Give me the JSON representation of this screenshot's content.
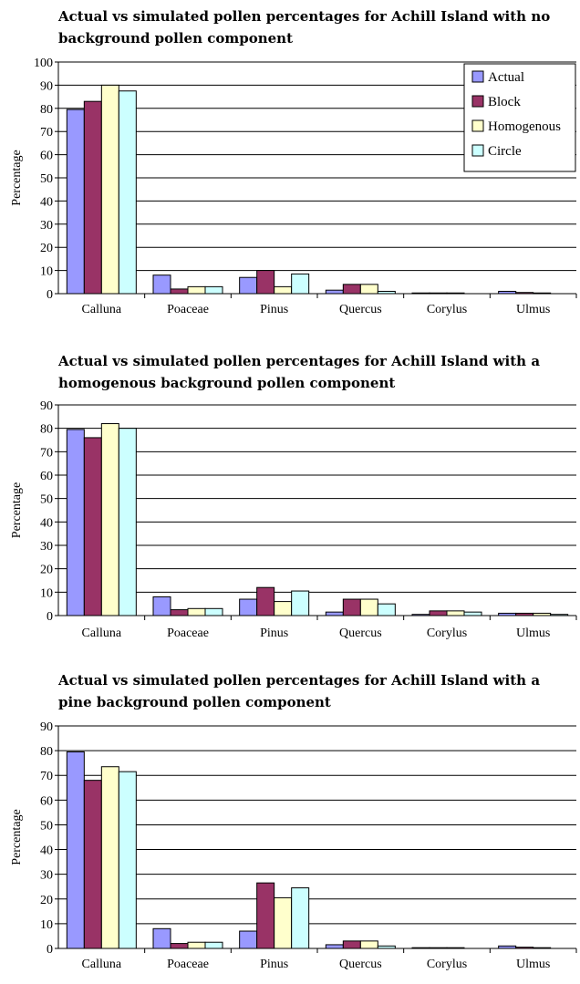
{
  "series_colors": [
    "#9999ff",
    "#993366",
    "#ffffcc",
    "#ccffff"
  ],
  "chart_data": [
    {
      "type": "bar",
      "title": "Actual vs simulated pollen percentages for Achill Island with no background pollen component",
      "ylabel": "Percentage",
      "ylim": [
        0,
        100
      ],
      "yticks": [
        "0",
        "10",
        "20",
        "30",
        "40",
        "50",
        "60",
        "70",
        "80",
        "90",
        "100"
      ],
      "categories": [
        "Calluna",
        "Poaceae",
        "Pinus",
        "Quercus",
        "Corylus",
        "Ulmus"
      ],
      "legend": "top-right",
      "grid": true,
      "series": [
        {
          "name": "Actual",
          "values": [
            79.5,
            8,
            7,
            1.5,
            0.3,
            1
          ]
        },
        {
          "name": "Block",
          "values": [
            83,
            2,
            10,
            4,
            0.3,
            0.5
          ]
        },
        {
          "name": "Homogenous",
          "values": [
            90,
            3,
            3,
            4,
            0.3,
            0.3
          ]
        },
        {
          "name": "Circle",
          "values": [
            87.5,
            3,
            8.5,
            1,
            0,
            0
          ]
        }
      ]
    },
    {
      "type": "bar",
      "title": "Actual vs simulated pollen percentages for Achill Island with a homogenous background pollen component",
      "ylabel": "Percentage",
      "ylim": [
        0,
        90
      ],
      "yticks": [
        "0",
        "10",
        "20",
        "30",
        "40",
        "50",
        "60",
        "70",
        "80",
        "90"
      ],
      "categories": [
        "Calluna",
        "Poaceae",
        "Pinus",
        "Quercus",
        "Corylus",
        "Ulmus"
      ],
      "grid": true,
      "series": [
        {
          "name": "Actual",
          "values": [
            79.5,
            8,
            7,
            1.5,
            0.5,
            1
          ]
        },
        {
          "name": "Block",
          "values": [
            76,
            2.5,
            12,
            7,
            2,
            1
          ]
        },
        {
          "name": "Homogenous",
          "values": [
            82,
            3,
            6,
            7,
            2,
            1
          ]
        },
        {
          "name": "Circle",
          "values": [
            80,
            3,
            10.5,
            5,
            1.5,
            0.5
          ]
        }
      ]
    },
    {
      "type": "bar",
      "title": "Actual vs simulated pollen percentages for Achill Island with a pine background pollen component",
      "ylabel": "Percentage",
      "ylim": [
        0,
        90
      ],
      "yticks": [
        "0",
        "10",
        "20",
        "30",
        "40",
        "50",
        "60",
        "70",
        "80",
        "90"
      ],
      "categories": [
        "Calluna",
        "Poaceae",
        "Pinus",
        "Quercus",
        "Corylus",
        "Ulmus"
      ],
      "grid": true,
      "series": [
        {
          "name": "Actual",
          "values": [
            79.5,
            8,
            7,
            1.5,
            0.3,
            1
          ]
        },
        {
          "name": "Block",
          "values": [
            68,
            2,
            26.5,
            3,
            0.3,
            0.5
          ]
        },
        {
          "name": "Homogenous",
          "values": [
            73.5,
            2.5,
            20.5,
            3,
            0.3,
            0.3
          ]
        },
        {
          "name": "Circle",
          "values": [
            71.5,
            2.5,
            24.5,
            1,
            0,
            0
          ]
        }
      ]
    }
  ]
}
